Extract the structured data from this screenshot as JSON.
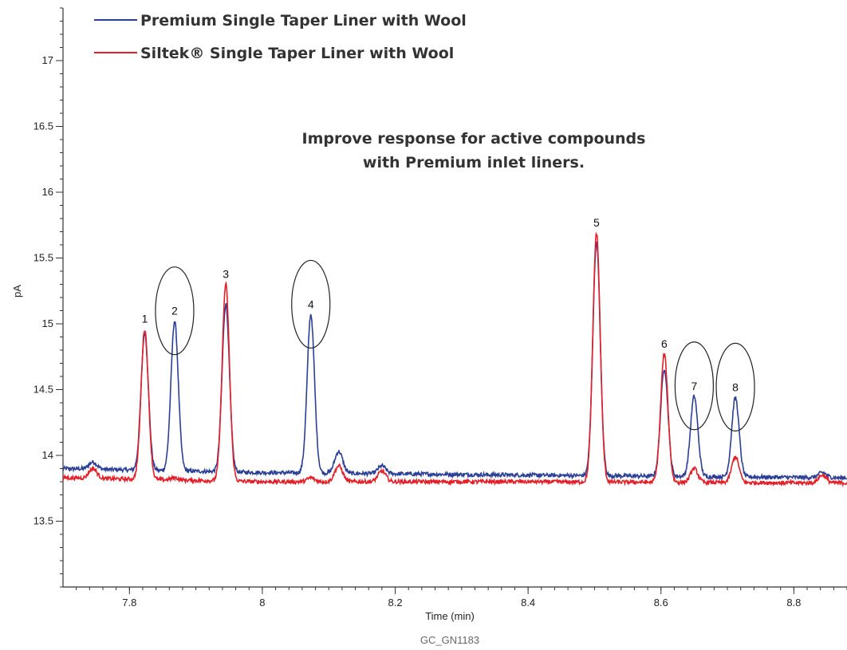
{
  "chart_data": {
    "type": "line",
    "title": "",
    "xlabel": "Time (min)",
    "ylabel": "pA",
    "xlim": [
      7.7,
      8.88
    ],
    "ylim": [
      13.0,
      17.4
    ],
    "x_ticks": [
      7.8,
      8.0,
      8.2,
      8.4,
      8.6,
      8.8
    ],
    "x_tick_labels": [
      "7.8",
      "8",
      "8.2",
      "8.4",
      "8.6",
      "8.8"
    ],
    "y_ticks": [
      13.5,
      14,
      14.5,
      15,
      15.5,
      16,
      16.5,
      17
    ],
    "y_tick_labels": [
      "13.5",
      "14",
      "14.5",
      "15",
      "15.5",
      "16",
      "16.5",
      "17"
    ],
    "legend_position": "top-left",
    "annotation": [
      "Improve response for active compounds",
      "with Premium inlet liners."
    ],
    "source_code": "GC_GN1183",
    "series": [
      {
        "name": "Premium Single Taper Liner with Wool",
        "color": "#2b3f96",
        "baseline": [
          [
            7.7,
            13.9
          ],
          [
            8.0,
            13.87
          ],
          [
            8.4,
            13.85
          ],
          [
            8.88,
            13.83
          ]
        ],
        "peaks": [
          {
            "label": "1",
            "t": 7.823,
            "height": 14.93
          },
          {
            "label": "2",
            "t": 7.868,
            "height": 15.02
          },
          {
            "label": "3",
            "t": 7.945,
            "height": 15.15
          },
          {
            "label": "4",
            "t": 8.073,
            "height": 15.07
          },
          {
            "label": "5",
            "t": 8.503,
            "height": 15.62
          },
          {
            "label": "6",
            "t": 8.605,
            "height": 14.66
          },
          {
            "label": "7",
            "t": 8.65,
            "height": 14.45
          },
          {
            "label": "8",
            "t": 8.712,
            "height": 14.44
          }
        ],
        "minor_peaks": [
          [
            7.745,
            13.95
          ],
          [
            8.115,
            14.03
          ],
          [
            8.18,
            13.92
          ],
          [
            8.843,
            13.87
          ]
        ]
      },
      {
        "name": "Siltek® Single Taper Liner with Wool",
        "color": "#e3202a",
        "baseline": [
          [
            7.7,
            13.83
          ],
          [
            8.0,
            13.8
          ],
          [
            8.4,
            13.8
          ],
          [
            8.88,
            13.79
          ]
        ],
        "peaks": [
          {
            "label": "1",
            "t": 7.823,
            "height": 14.96
          },
          {
            "label": "2",
            "t": 7.868,
            "height": 13.83
          },
          {
            "label": "3",
            "t": 7.945,
            "height": 15.3
          },
          {
            "label": "4",
            "t": 8.073,
            "height": 13.83
          },
          {
            "label": "5",
            "t": 8.503,
            "height": 15.69
          },
          {
            "label": "6",
            "t": 8.605,
            "height": 14.77
          },
          {
            "label": "7",
            "t": 8.65,
            "height": 13.9
          },
          {
            "label": "8",
            "t": 8.712,
            "height": 13.99
          }
        ],
        "minor_peaks": [
          [
            7.745,
            13.9
          ],
          [
            8.115,
            13.92
          ],
          [
            8.18,
            13.88
          ],
          [
            8.843,
            13.85
          ]
        ]
      }
    ],
    "circled_peaks": [
      "2",
      "4",
      "7",
      "8"
    ]
  }
}
